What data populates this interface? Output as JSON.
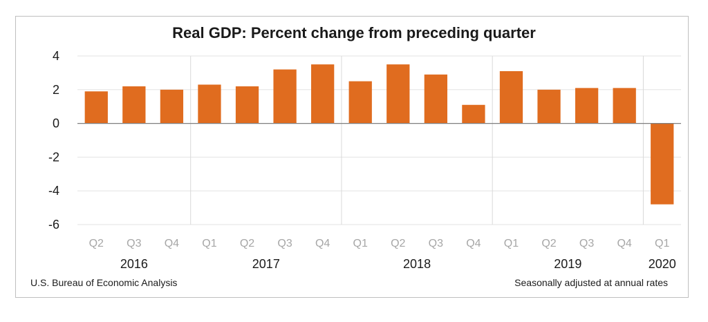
{
  "chart_data": {
    "type": "bar",
    "title": "Real GDP:  Percent change from preceding quarter",
    "categories": [
      "Q2",
      "Q3",
      "Q4",
      "Q1",
      "Q2",
      "Q3",
      "Q4",
      "Q1",
      "Q2",
      "Q3",
      "Q4",
      "Q1",
      "Q2",
      "Q3",
      "Q4",
      "Q1"
    ],
    "years": [
      {
        "label": "2016",
        "start": 0,
        "end": 2
      },
      {
        "label": "2017",
        "start": 3,
        "end": 6
      },
      {
        "label": "2018",
        "start": 7,
        "end": 10
      },
      {
        "label": "2019",
        "start": 11,
        "end": 14
      },
      {
        "label": "2020",
        "start": 15,
        "end": 15
      }
    ],
    "values": [
      1.9,
      2.2,
      2.0,
      2.3,
      2.2,
      3.2,
      3.5,
      2.5,
      3.5,
      2.9,
      1.1,
      3.1,
      2.0,
      2.1,
      2.1,
      -4.8
    ],
    "ylim": [
      -6,
      4
    ],
    "yticks": [
      4,
      2,
      0,
      -2,
      -4,
      -6
    ],
    "bar_color": "#e06c1f",
    "grid": true,
    "source": "U.S. Bureau of Economic Analysis",
    "note": "Seasonally adjusted at annual rates"
  }
}
